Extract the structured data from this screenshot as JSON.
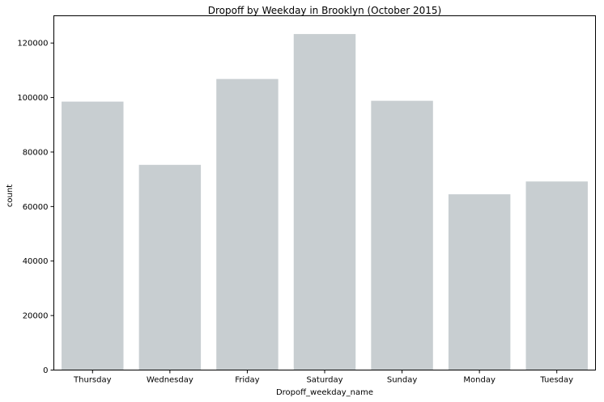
{
  "chart_data": {
    "type": "bar",
    "title": "Dropoff by Weekday in Brooklyn (October 2015)",
    "xlabel": "Dropoff_weekday_name",
    "ylabel": "count",
    "categories": [
      "Thursday",
      "Wednesday",
      "Friday",
      "Saturday",
      "Sunday",
      "Monday",
      "Tuesday"
    ],
    "values": [
      98500,
      75300,
      106800,
      123300,
      98800,
      64500,
      69200
    ],
    "ylim": [
      0,
      130000
    ],
    "yticks": [
      0,
      20000,
      40000,
      60000,
      80000,
      100000,
      120000
    ],
    "bar_color": "#c8ced1",
    "grid": false,
    "legend": "none"
  }
}
